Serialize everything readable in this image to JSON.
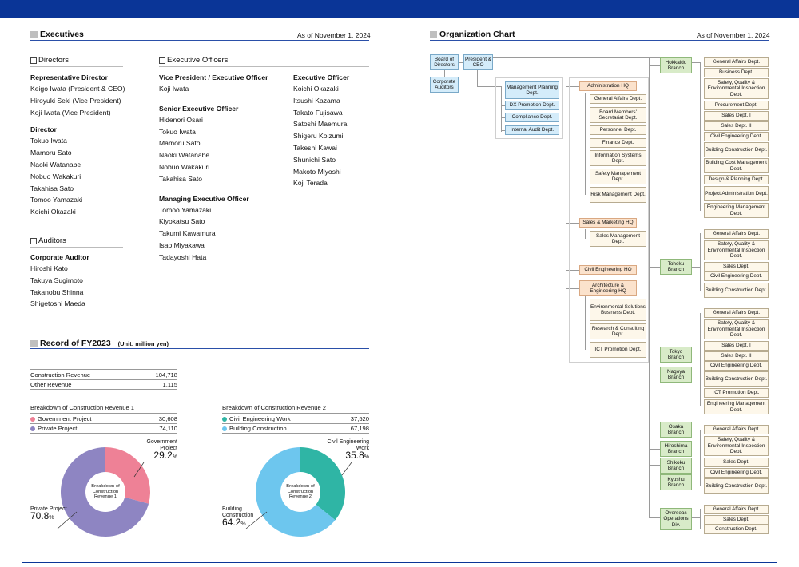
{
  "executives": {
    "title": "Executives",
    "as_of": "As of November 1, 2024",
    "directors": {
      "heading": "Directors",
      "groups": [
        {
          "role": "Representative Director",
          "names": [
            "Keigo Iwata (President & CEO)",
            "Hiroyuki Seki (Vice President)",
            "Koji Iwata (Vice President)"
          ]
        },
        {
          "role": "Director",
          "names": [
            "Tokuo Iwata",
            "Mamoru Sato",
            "Naoki Watanabe",
            "Nobuo Wakakuri",
            "Takahisa Sato",
            "Tomoo Yamazaki",
            "Koichi Okazaki"
          ]
        }
      ]
    },
    "auditors": {
      "heading": "Auditors",
      "groups": [
        {
          "role": "Corporate Auditor",
          "names": [
            "Hiroshi Kato",
            "Takuya Sugimoto",
            "Takanobu Shinna",
            "Shigetoshi Maeda"
          ]
        }
      ]
    },
    "officers": {
      "heading": "Executive Officers",
      "col1": [
        {
          "role": "Vice President / Executive Officer",
          "names": [
            "Koji Iwata"
          ]
        },
        {
          "role": "Senior Executive Officer",
          "names": [
            "Hidenori Osari",
            "Tokuo Iwata",
            "Mamoru Sato",
            "Naoki Watanabe",
            "Nobuo Wakakuri",
            "Takahisa Sato"
          ]
        },
        {
          "role": "Managing Executive Officer",
          "names": [
            "Tomoo Yamazaki",
            "Kiyokatsu Sato",
            "Takumi Kawamura",
            "Isao Miyakawa",
            "Tadayoshi Hata"
          ]
        }
      ],
      "col2": [
        {
          "role": "Executive Officer",
          "names": [
            "Koichi Okazaki",
            "Itsushi Kazama",
            "Takato Fujisawa",
            "Satoshi Maemura",
            "Shigeru Koizumi",
            "Takeshi Kawai",
            "Shunichi Sato",
            "Makoto Miyoshi",
            "Koji Terada"
          ]
        }
      ]
    }
  },
  "record": {
    "title": "Record of FY2023",
    "unit": "(Unit: million yen)",
    "totals": [
      {
        "label": "Construction Revenue",
        "value": "104,718"
      },
      {
        "label": "Other Revenue",
        "value": "1,115"
      }
    ],
    "breakdown1": {
      "title": "Breakdown of Construction Revenue 1",
      "rows": [
        {
          "label": "Government Project",
          "value": "30,608"
        },
        {
          "label": "Private Project",
          "value": "74,110"
        }
      ],
      "center": "Breakdown of Construction Revenue 1",
      "callouts": [
        {
          "label": "Government Project",
          "pct_int": "29.2",
          "pct_unit": "%"
        },
        {
          "label": "Private Project",
          "pct_int": "70.8",
          "pct_unit": "%"
        }
      ]
    },
    "breakdown2": {
      "title": "Breakdown of Construction Revenue 2",
      "rows": [
        {
          "label": "Civil Engineering Work",
          "value": "37,520"
        },
        {
          "label": "Building Construction",
          "value": "67,198"
        }
      ],
      "center": "Breakdown of Construction Revenue 2",
      "callouts": [
        {
          "label": "Civil Engineering Work",
          "pct_int": "35.8",
          "pct_unit": "%"
        },
        {
          "label": "Building Construction",
          "pct_int": "64.2",
          "pct_unit": "%"
        }
      ]
    }
  },
  "chart_data": [
    {
      "type": "pie",
      "title": "Breakdown of Construction Revenue 1",
      "categories": [
        "Government Project",
        "Private Project"
      ],
      "values": [
        30608,
        74110
      ],
      "percent": [
        29.2,
        70.8
      ],
      "colors": [
        "#ee8196",
        "#8e85c2"
      ]
    },
    {
      "type": "pie",
      "title": "Breakdown of Construction Revenue 2",
      "categories": [
        "Civil Engineering Work",
        "Building Construction"
      ],
      "values": [
        37520,
        67198
      ],
      "percent": [
        35.8,
        64.2
      ],
      "colors": [
        "#2fb5a5",
        "#6dc6ee"
      ]
    }
  ],
  "org": {
    "title": "Organization Chart",
    "as_of": "As of November 1, 2024",
    "top": {
      "board": "Board of Directors",
      "president": "President & CEO",
      "auditors": "Corporate Auditors"
    },
    "staff": [
      "Management Planning Dept.",
      "DX Promotion Dept.",
      "Compliance Dept.",
      "Internal Audit Dept."
    ],
    "hq": {
      "admin": "Administration HQ",
      "admin_depts": [
        "General Affairs Dept.",
        "Board Members' Secretariat Dept.",
        "Personnel Dept.",
        "Finance Dept.",
        "Information Systems Dept.",
        "Safety Management Dept.",
        "Risk Management Dept."
      ],
      "sales": "Sales & Marketing HQ",
      "sales_depts": [
        "Sales Management Dept."
      ],
      "civil": "Civil Engineering HQ",
      "arch": "Architecture & Engineering HQ",
      "arch_depts": [
        "Environmental Solutions Business Dept.",
        "Research & Consulting Dept.",
        "ICT Promotion Dept."
      ]
    },
    "branches": {
      "hokkaido": "Hokkaido Branch",
      "tohoku": "Tohoku Branch",
      "tokyo": "Tokyo Branch",
      "nagoya": "Nagoya Branch",
      "osaka": "Osaka Branch",
      "hiroshima": "Hiroshima Branch",
      "shikoku": "Shikoku Branch",
      "kyushu": "Kyushu Branch",
      "overseas": "Overseas Operations Div."
    },
    "branch_depts": {
      "hokkaido": [
        "General Affairs Dept.",
        "Business Dept.",
        "Safety, Quality & Environmental Inspection Dept.",
        "Procurement Dept.",
        "Sales Dept. I",
        "Sales Dept. II",
        "Civil Engineering Dept.",
        "Building Construction Dept.",
        "Building Cost Management Dept.",
        "Design & Planning Dept.",
        "Project Administration Dept.",
        "Engineering Management Dept."
      ],
      "tohoku": [
        "General Affairs Dept.",
        "Safety, Quality & Environmental Inspection Dept.",
        "Sales Dept.",
        "Civil Engineering Dept.",
        "Building Construction Dept."
      ],
      "tokyo": [
        "General Affairs Dept.",
        "Safety, Quality & Environmental Inspection Dept.",
        "Sales Dept. I",
        "Sales Dept. II",
        "Civil Engineering Dept.",
        "Building Construction Dept.",
        "ICT Promotion Dept.",
        "Engineering Management Dept."
      ],
      "osaka": [
        "General Affairs Dept.",
        "Safety, Quality & Environmental Inspection Dept.",
        "Sales Dept.",
        "Civil Engineering Dept.",
        "Building Construction Dept."
      ],
      "overseas": [
        "General Affairs Dept.",
        "Sales Dept.",
        "Construction Dept."
      ]
    }
  }
}
